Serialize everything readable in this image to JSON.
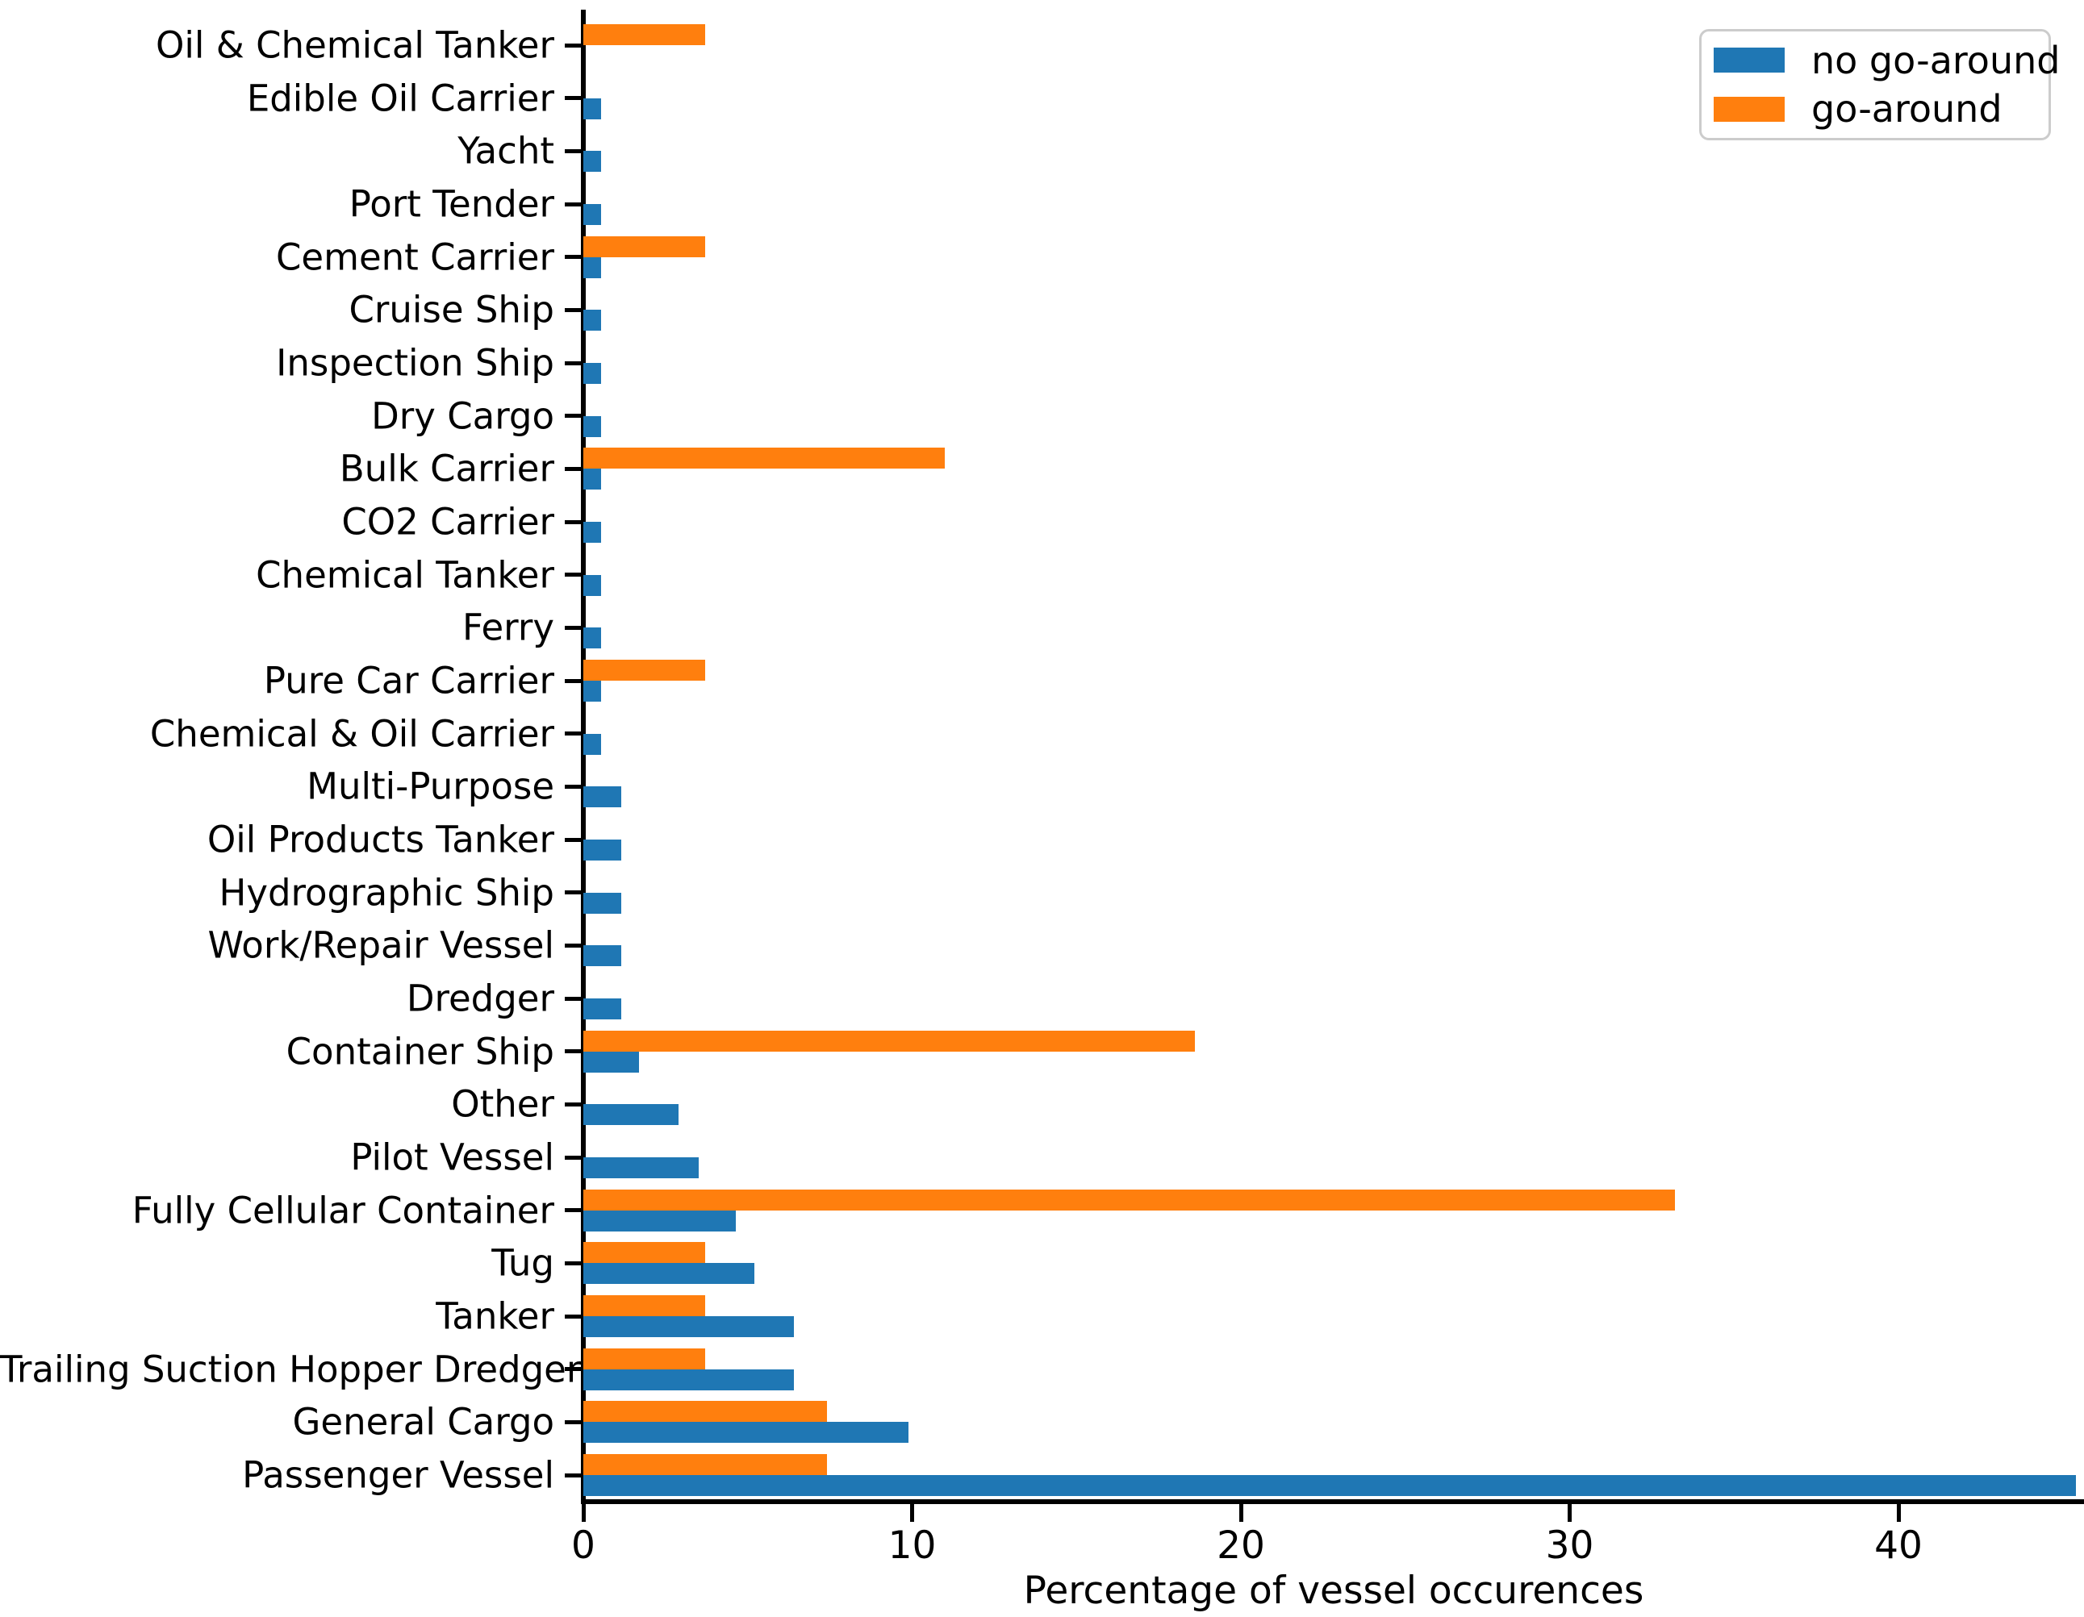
{
  "chart_data": {
    "type": "bar",
    "orientation": "horizontal",
    "xlabel": "Percentage of vessel occurences",
    "ylabel": "",
    "xlim": [
      0,
      45.7
    ],
    "x_ticks": [
      0,
      10,
      20,
      30,
      40
    ],
    "grid": false,
    "legend_position": "upper right",
    "categories": [
      "Oil & Chemical Tanker",
      "Edible Oil Carrier",
      "Yacht",
      "Port Tender",
      "Cement Carrier",
      "Cruise Ship",
      "Inspection Ship",
      "Dry Cargo",
      "Bulk Carrier",
      "CO2 Carrier",
      "Chemical Tanker",
      "Ferry",
      "Pure Car Carrier",
      "Chemical & Oil Carrier",
      "Multi-Purpose",
      "Oil Products Tanker",
      "Hydrographic Ship",
      "Work/Repair Vessel",
      "Dredger",
      "Container Ship",
      "Other",
      "Pilot Vessel",
      "Fully Cellular Container",
      "Tug",
      "Tanker",
      "Trailing Suction Hopper Dredger",
      "General Cargo",
      "Passenger Vessel"
    ],
    "series": [
      {
        "name": "no go-around",
        "color": "#1f77b4",
        "values": [
          0,
          0.55,
          0.55,
          0.55,
          0.55,
          0.55,
          0.55,
          0.55,
          0.55,
          0.55,
          0.55,
          0.55,
          0.55,
          0.55,
          1.15,
          1.15,
          1.15,
          1.15,
          1.15,
          1.7,
          2.9,
          3.5,
          4.65,
          5.2,
          6.4,
          6.4,
          9.9,
          45.4
        ]
      },
      {
        "name": "go-around",
        "color": "#ff7f0e",
        "values": [
          3.7,
          0,
          0,
          0,
          3.7,
          0,
          0,
          0,
          11.0,
          0,
          0,
          0,
          3.7,
          0,
          0,
          0,
          0,
          0,
          0,
          18.6,
          0,
          0,
          33.2,
          3.7,
          3.7,
          3.7,
          7.4,
          7.4
        ]
      }
    ]
  },
  "axes": {
    "xlabel": "Percentage of vessel occurences",
    "x_tick_labels": [
      "0",
      "10",
      "20",
      "30",
      "40"
    ]
  },
  "legend": {
    "items": [
      {
        "label": "no go-around",
        "color": "#1f77b4"
      },
      {
        "label": "go-around",
        "color": "#ff7f0e"
      }
    ]
  },
  "colors": {
    "no_go_around": "#1f77b4",
    "go_around": "#ff7f0e",
    "axis": "#000000",
    "background": "#ffffff",
    "legend_border": "#cccccc"
  }
}
